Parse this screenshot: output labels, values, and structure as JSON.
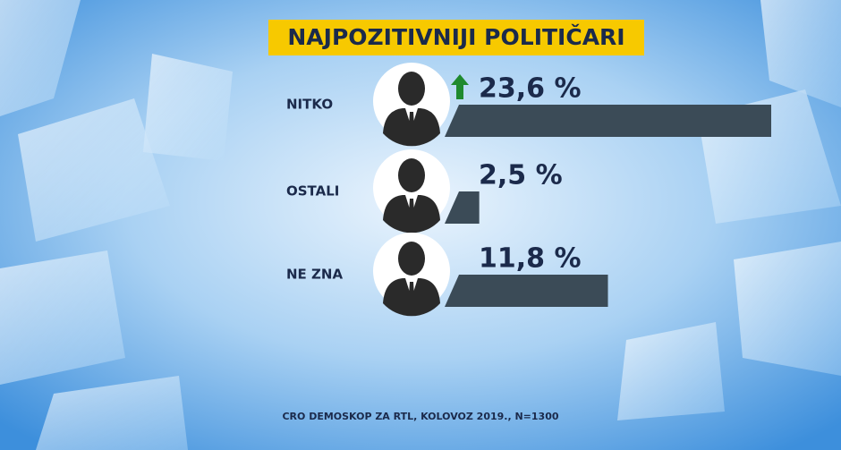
{
  "chart_data": {
    "type": "bar",
    "title": "NAJPOZITIVNIJI POLITIČARI",
    "categories": [
      "NITKO",
      "OSTALI",
      "NE ZNA"
    ],
    "values": [
      23.6,
      2.5,
      11.8
    ],
    "value_labels": [
      "23,6 %",
      "2,5 %",
      "11,8 %"
    ],
    "color": "#3b4b57",
    "source": "CRO DEMOSKOP ZA RTL, KOLOVOZ 2019., N=1300"
  }
}
